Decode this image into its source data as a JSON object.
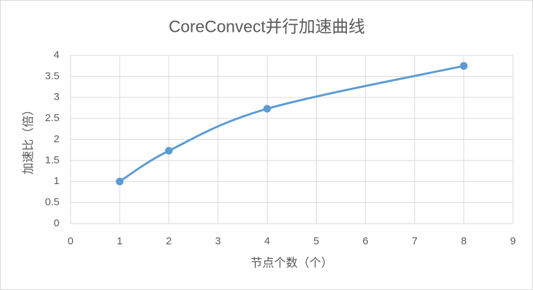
{
  "chart_data": {
    "type": "line",
    "title": "CoreConvect并行加速曲线",
    "x_label": "节点个数（个）",
    "y_label": "加速比（倍）",
    "x": [
      1,
      2,
      4,
      8
    ],
    "series": [
      {
        "name": "加速比",
        "color": "#5b9bd5",
        "values": [
          1,
          1.73,
          2.73,
          3.75
        ]
      }
    ],
    "xlim": [
      0,
      9
    ],
    "xticks": [
      0,
      1,
      2,
      3,
      4,
      5,
      6,
      7,
      8,
      9
    ],
    "ylim": [
      0,
      4
    ],
    "yticks": [
      0,
      0.5,
      1,
      1.5,
      2,
      2.5,
      3,
      3.5,
      4
    ],
    "grid": true,
    "smooth": true
  }
}
